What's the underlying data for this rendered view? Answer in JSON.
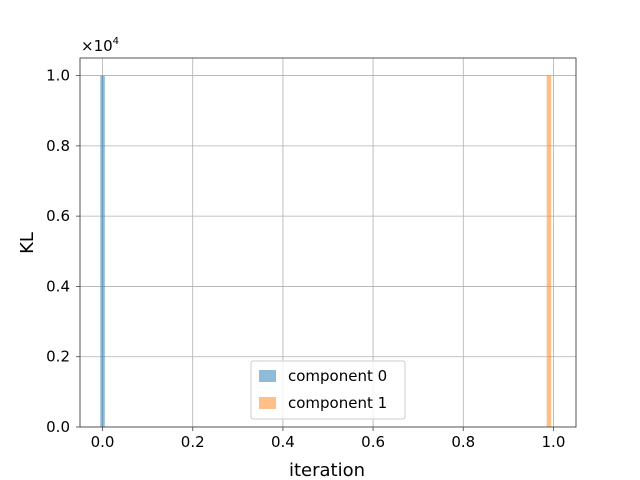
{
  "chart_data": {
    "type": "bar",
    "xlabel": "iteration",
    "ylabel": "KL",
    "y_multiplier_base": "×10",
    "y_multiplier_exp": "4",
    "xlim": [
      -0.05,
      1.05
    ],
    "ylim": [
      0,
      1.05
    ],
    "xticks": [
      0.0,
      0.2,
      0.4,
      0.6,
      0.8,
      1.0
    ],
    "xtick_labels": [
      "0.0",
      "0.2",
      "0.4",
      "0.6",
      "0.8",
      "1.0"
    ],
    "yticks": [
      0.0,
      0.2,
      0.4,
      0.6,
      0.8,
      1.0
    ],
    "ytick_labels": [
      "0.0",
      "0.2",
      "0.4",
      "0.6",
      "0.8",
      "1.0"
    ],
    "grid": true,
    "legend_position": "bottom-center",
    "series": [
      {
        "name": "component 0",
        "color": "#1f77b4",
        "opacity": 0.5,
        "bars": [
          {
            "x": 0.0,
            "width": 0.01,
            "value": 1.0
          }
        ]
      },
      {
        "name": "component 1",
        "color": "#ff7f0e",
        "opacity": 0.5,
        "bars": [
          {
            "x": 0.99,
            "width": 0.01,
            "value": 1.0
          }
        ]
      }
    ]
  }
}
